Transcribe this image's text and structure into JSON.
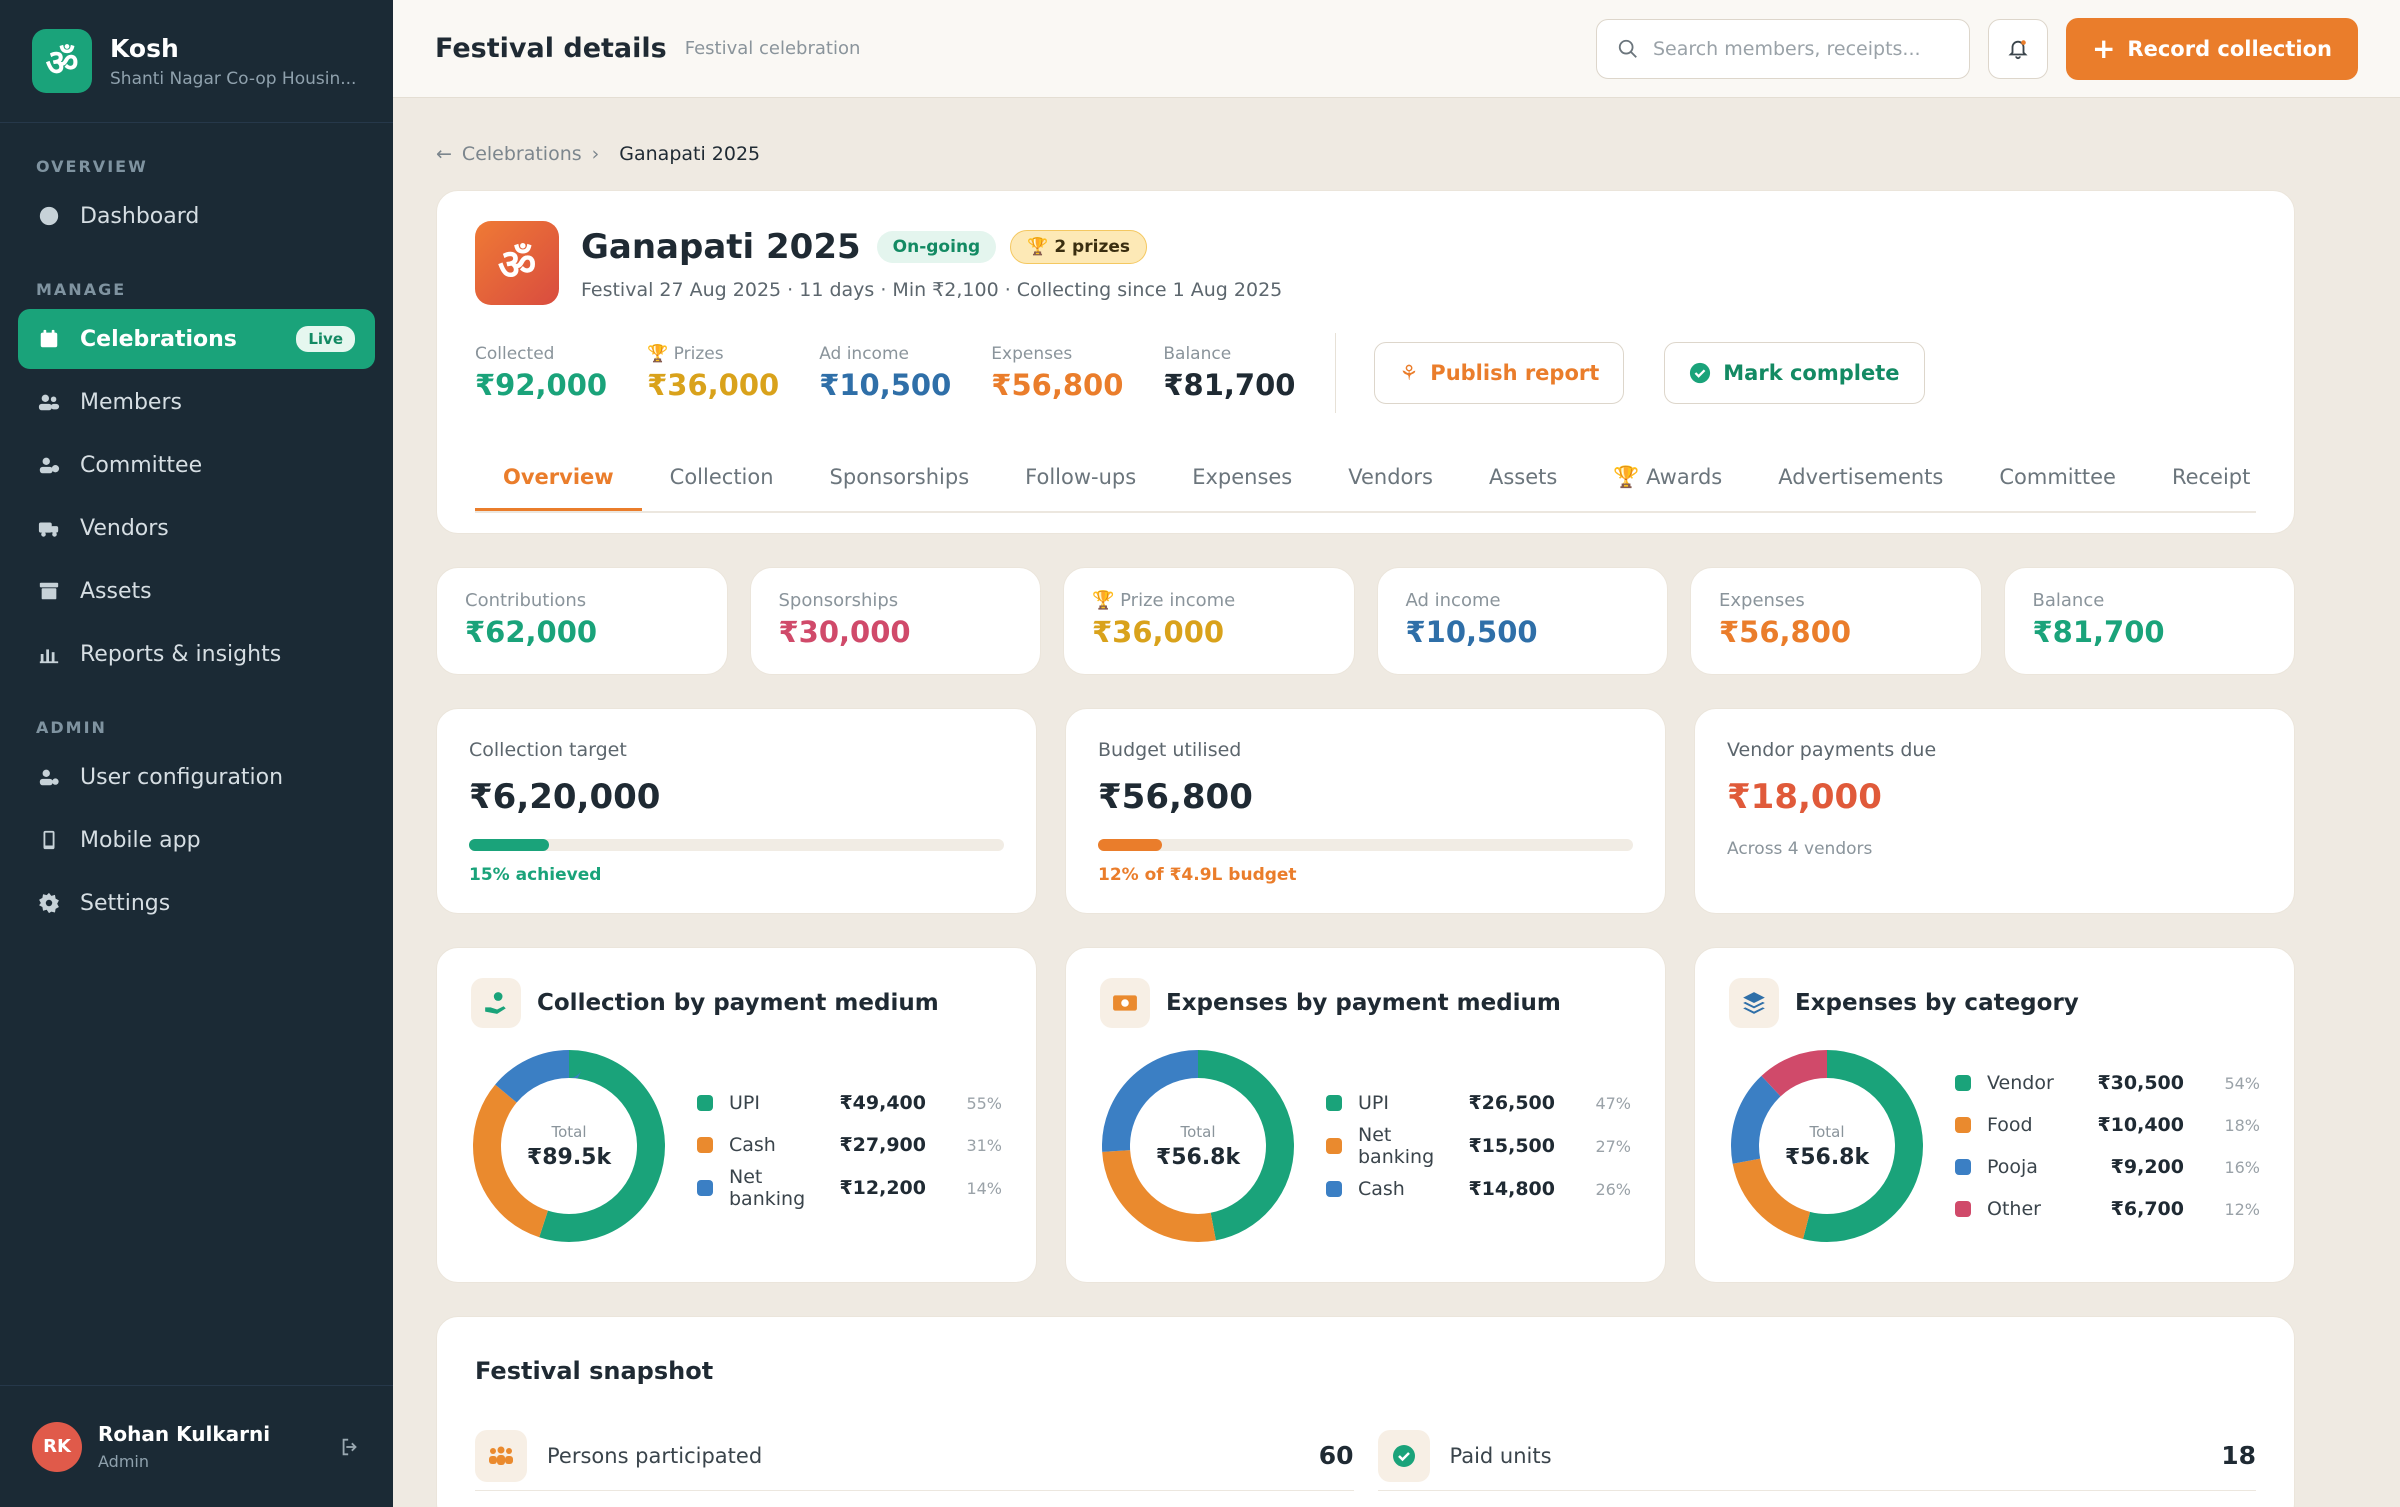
{
  "app": {
    "logo_glyph": "ॐ",
    "name": "Kosh",
    "org": "Shanti Nagar Co-op Housin..."
  },
  "sidebar": {
    "sections": [
      "OVERVIEW",
      "MANAGE",
      "ADMIN"
    ],
    "items": [
      {
        "label": "Dashboard",
        "icon": "gauge-icon"
      },
      {
        "label": "Celebrations",
        "icon": "calendar-icon",
        "badge": "Live"
      },
      {
        "label": "Members",
        "icon": "users-icon"
      },
      {
        "label": "Committee",
        "icon": "user-group-icon"
      },
      {
        "label": "Vendors",
        "icon": "truck-icon"
      },
      {
        "label": "Assets",
        "icon": "archive-icon"
      },
      {
        "label": "Reports & insights",
        "icon": "chart-icon"
      },
      {
        "label": "User configuration",
        "icon": "user-cog-icon"
      },
      {
        "label": "Mobile app",
        "icon": "mobile-icon"
      },
      {
        "label": "Settings",
        "icon": "gear-icon"
      }
    ],
    "user": {
      "initials": "RK",
      "name": "Rohan Kulkarni",
      "role": "Admin"
    }
  },
  "topbar": {
    "title": "Festival details",
    "subtitle": "Festival celebration",
    "search_placeholder": "Search members, receipts...",
    "record_label": "Record collection"
  },
  "breadcrumb": {
    "parent": "Celebrations",
    "current": "Ganapati 2025"
  },
  "festival": {
    "icon_glyph": "ॐ",
    "name": "Ganapati 2025",
    "status": "On-going",
    "prizes_badge": "2 prizes",
    "meta": "Festival 27 Aug 2025 · 11 days · Min ₹2,100 · Collecting since 1 Aug 2025",
    "stats": [
      {
        "label": "Collected",
        "value": "₹92,000",
        "color": "#1aa37a"
      },
      {
        "label": "Prizes",
        "value": "₹36,000",
        "color": "#d9a21b"
      },
      {
        "label": "Ad income",
        "value": "₹10,500",
        "color": "#2f6fa8"
      },
      {
        "label": "Expenses",
        "value": "₹56,800",
        "color": "#ea7d2b"
      },
      {
        "label": "Balance",
        "value": "₹81,700",
        "color": "#1f2a33"
      }
    ],
    "publish_label": "Publish report",
    "complete_label": "Mark complete",
    "tabs": [
      "Overview",
      "Collection",
      "Sponsorships",
      "Follow-ups",
      "Expenses",
      "Vendors",
      "Assets",
      "Awards",
      "Advertisements",
      "Committee",
      "Receipt"
    ]
  },
  "mini_stats": [
    {
      "label": "Contributions",
      "value": "₹62,000",
      "color": "#1aa37a"
    },
    {
      "label": "Sponsorships",
      "value": "₹30,000",
      "color": "#d04a6a"
    },
    {
      "label": "Prize income",
      "value": "₹36,000",
      "color": "#d9a21b"
    },
    {
      "label": "Ad income",
      "value": "₹10,500",
      "color": "#2f6fa8"
    },
    {
      "label": "Expenses",
      "value": "₹56,800",
      "color": "#ea7d2b"
    },
    {
      "label": "Balance",
      "value": "₹81,700",
      "color": "#1aa37a"
    }
  ],
  "summary": {
    "target": {
      "label": "Collection target",
      "value": "₹6,20,000",
      "progress": 0.15,
      "note": "15% achieved",
      "color": "#1aa37a"
    },
    "budget": {
      "label": "Budget utilised",
      "value": "₹56,800",
      "progress": 0.12,
      "note": "12% of ₹4.9L budget",
      "color": "#ea7d2b"
    },
    "vendor": {
      "label": "Vendor payments due",
      "value": "₹18,000",
      "note": "Across 4 vendors",
      "color": "#e05a3a"
    }
  },
  "charts": [
    {
      "title": "Collection by payment medium",
      "icon": "hand-coin-icon",
      "total_label": "Total",
      "total": "₹89.5k",
      "rows": [
        {
          "name": "UPI",
          "value": "₹49,400",
          "pct": "55%",
          "share": 55,
          "color": "#1aa37a"
        },
        {
          "name": "Cash",
          "value": "₹27,900",
          "pct": "31%",
          "share": 31,
          "color": "#ea8a2e"
        },
        {
          "name": "Net banking",
          "value": "₹12,200",
          "pct": "14%",
          "share": 14,
          "color": "#3b7fc4"
        }
      ]
    },
    {
      "title": "Expenses by payment medium",
      "icon": "money-icon",
      "total_label": "Total",
      "total": "₹56.8k",
      "rows": [
        {
          "name": "UPI",
          "value": "₹26,500",
          "pct": "47%",
          "share": 47,
          "color": "#1aa37a"
        },
        {
          "name": "Net banking",
          "value": "₹15,500",
          "pct": "27%",
          "share": 27,
          "color": "#ea8a2e"
        },
        {
          "name": "Cash",
          "value": "₹14,800",
          "pct": "26%",
          "share": 26,
          "color": "#3b7fc4"
        }
      ]
    },
    {
      "title": "Expenses by category",
      "icon": "layers-icon",
      "total_label": "Total",
      "total": "₹56.8k",
      "rows": [
        {
          "name": "Vendor",
          "value": "₹30,500",
          "pct": "54%",
          "share": 54,
          "color": "#1aa37a"
        },
        {
          "name": "Food",
          "value": "₹10,400",
          "pct": "18%",
          "share": 18,
          "color": "#ea8a2e"
        },
        {
          "name": "Pooja",
          "value": "₹9,200",
          "pct": "16%",
          "share": 16,
          "color": "#3b7fc4"
        },
        {
          "name": "Other",
          "value": "₹6,700",
          "pct": "12%",
          "share": 12,
          "color": "#d04a6a"
        }
      ]
    }
  ],
  "snapshot": {
    "title": "Festival snapshot",
    "items": [
      {
        "label": "Persons participated",
        "value": "60"
      },
      {
        "label": "Paid units",
        "value": "18"
      }
    ]
  }
}
